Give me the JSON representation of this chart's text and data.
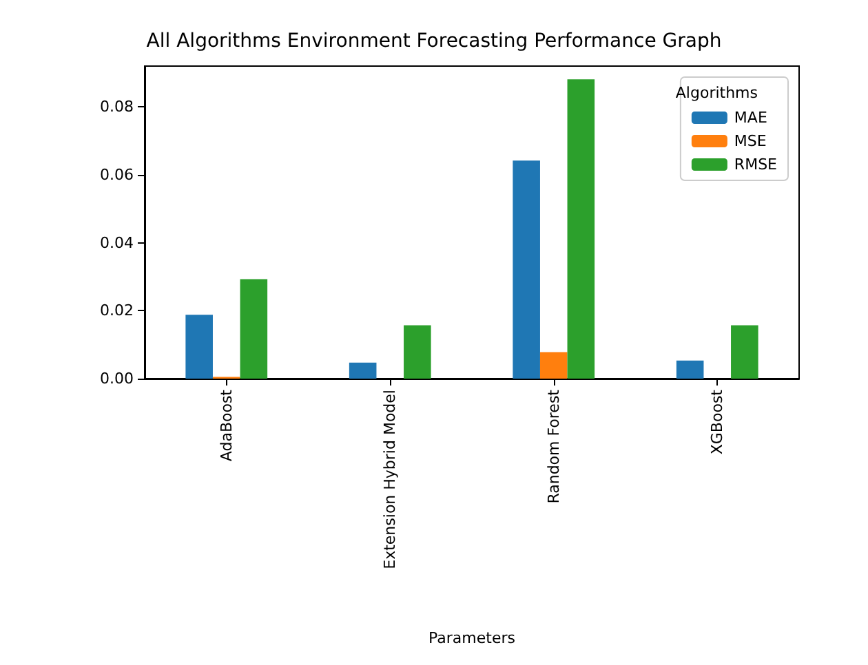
{
  "chart_data": {
    "type": "bar",
    "title": "All Algorithms Environment Forecasting Performance Graph",
    "xlabel": "Parameters",
    "legend_title": "Algorithms",
    "legend": "top right",
    "grid": false,
    "categories": [
      "AdaBoost",
      "Extension Hybrid Model",
      "Random Forest",
      "XGBoost"
    ],
    "series": [
      {
        "name": "MAE",
        "color": "#1f77b4",
        "values": [
          0.0188,
          0.0047,
          0.0642,
          0.0053
        ]
      },
      {
        "name": "MSE",
        "color": "#ff7f0e",
        "values": [
          0.0005,
          0,
          0.0078,
          0
        ]
      },
      {
        "name": "RMSE",
        "color": "#2ca02c",
        "values": [
          0.0293,
          0.0157,
          0.0881,
          0.0157
        ]
      }
    ],
    "ylim": [
      0,
      0.092
    ],
    "yticks": [
      {
        "value": 0,
        "label": "0.00"
      },
      {
        "value": 0.02,
        "label": "0.02"
      },
      {
        "value": 0.04,
        "label": "0.04"
      },
      {
        "value": 0.06,
        "label": "0.06"
      },
      {
        "value": 0.08,
        "label": "0.08"
      }
    ]
  }
}
